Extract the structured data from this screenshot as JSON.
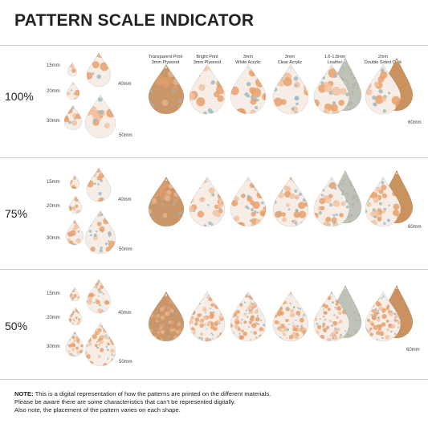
{
  "title": "PATTERN SCALE INDICATOR",
  "materials": [
    {
      "line1": "Transparent Print",
      "line2": "3mm Plywood"
    },
    {
      "line1": "Bright Print",
      "line2": "3mm Plywood"
    },
    {
      "line1": "3mm",
      "line2": "White Acrylic"
    },
    {
      "line1": "3mm",
      "line2": "Clear Acrylic"
    },
    {
      "line1": "1.6-1.8mm",
      "line2": "Leather"
    },
    {
      "line1": "2mm",
      "line2": "Double Sided Cork"
    }
  ],
  "size_labels": {
    "s15": "15mm",
    "s20": "20mm",
    "s30": "30mm",
    "s40": "40mm",
    "s50": "50mm",
    "s60": "60mm"
  },
  "sections": [
    {
      "scale": "100%"
    },
    {
      "scale": "75%"
    },
    {
      "scale": "50%"
    }
  ],
  "note": {
    "prefix": "NOTE:",
    "line1": " This is a digital representation of how the patterns are printed on the different materials.",
    "line2": "Please be aware there are some characteristics that can't be represented digitally.",
    "line3": "Also note, the placement of the pattern varies on each shape."
  },
  "colors": {
    "plywood": "#c9966a",
    "print_bg": "#f6ede7",
    "flower_orange": "#e7a06b",
    "flower_peach": "#f2c2a0",
    "leaf_blue": "#9fbcc0",
    "leather": "#bfc2b6",
    "cork": "#c9925e",
    "divider": "#cfcfcf"
  }
}
